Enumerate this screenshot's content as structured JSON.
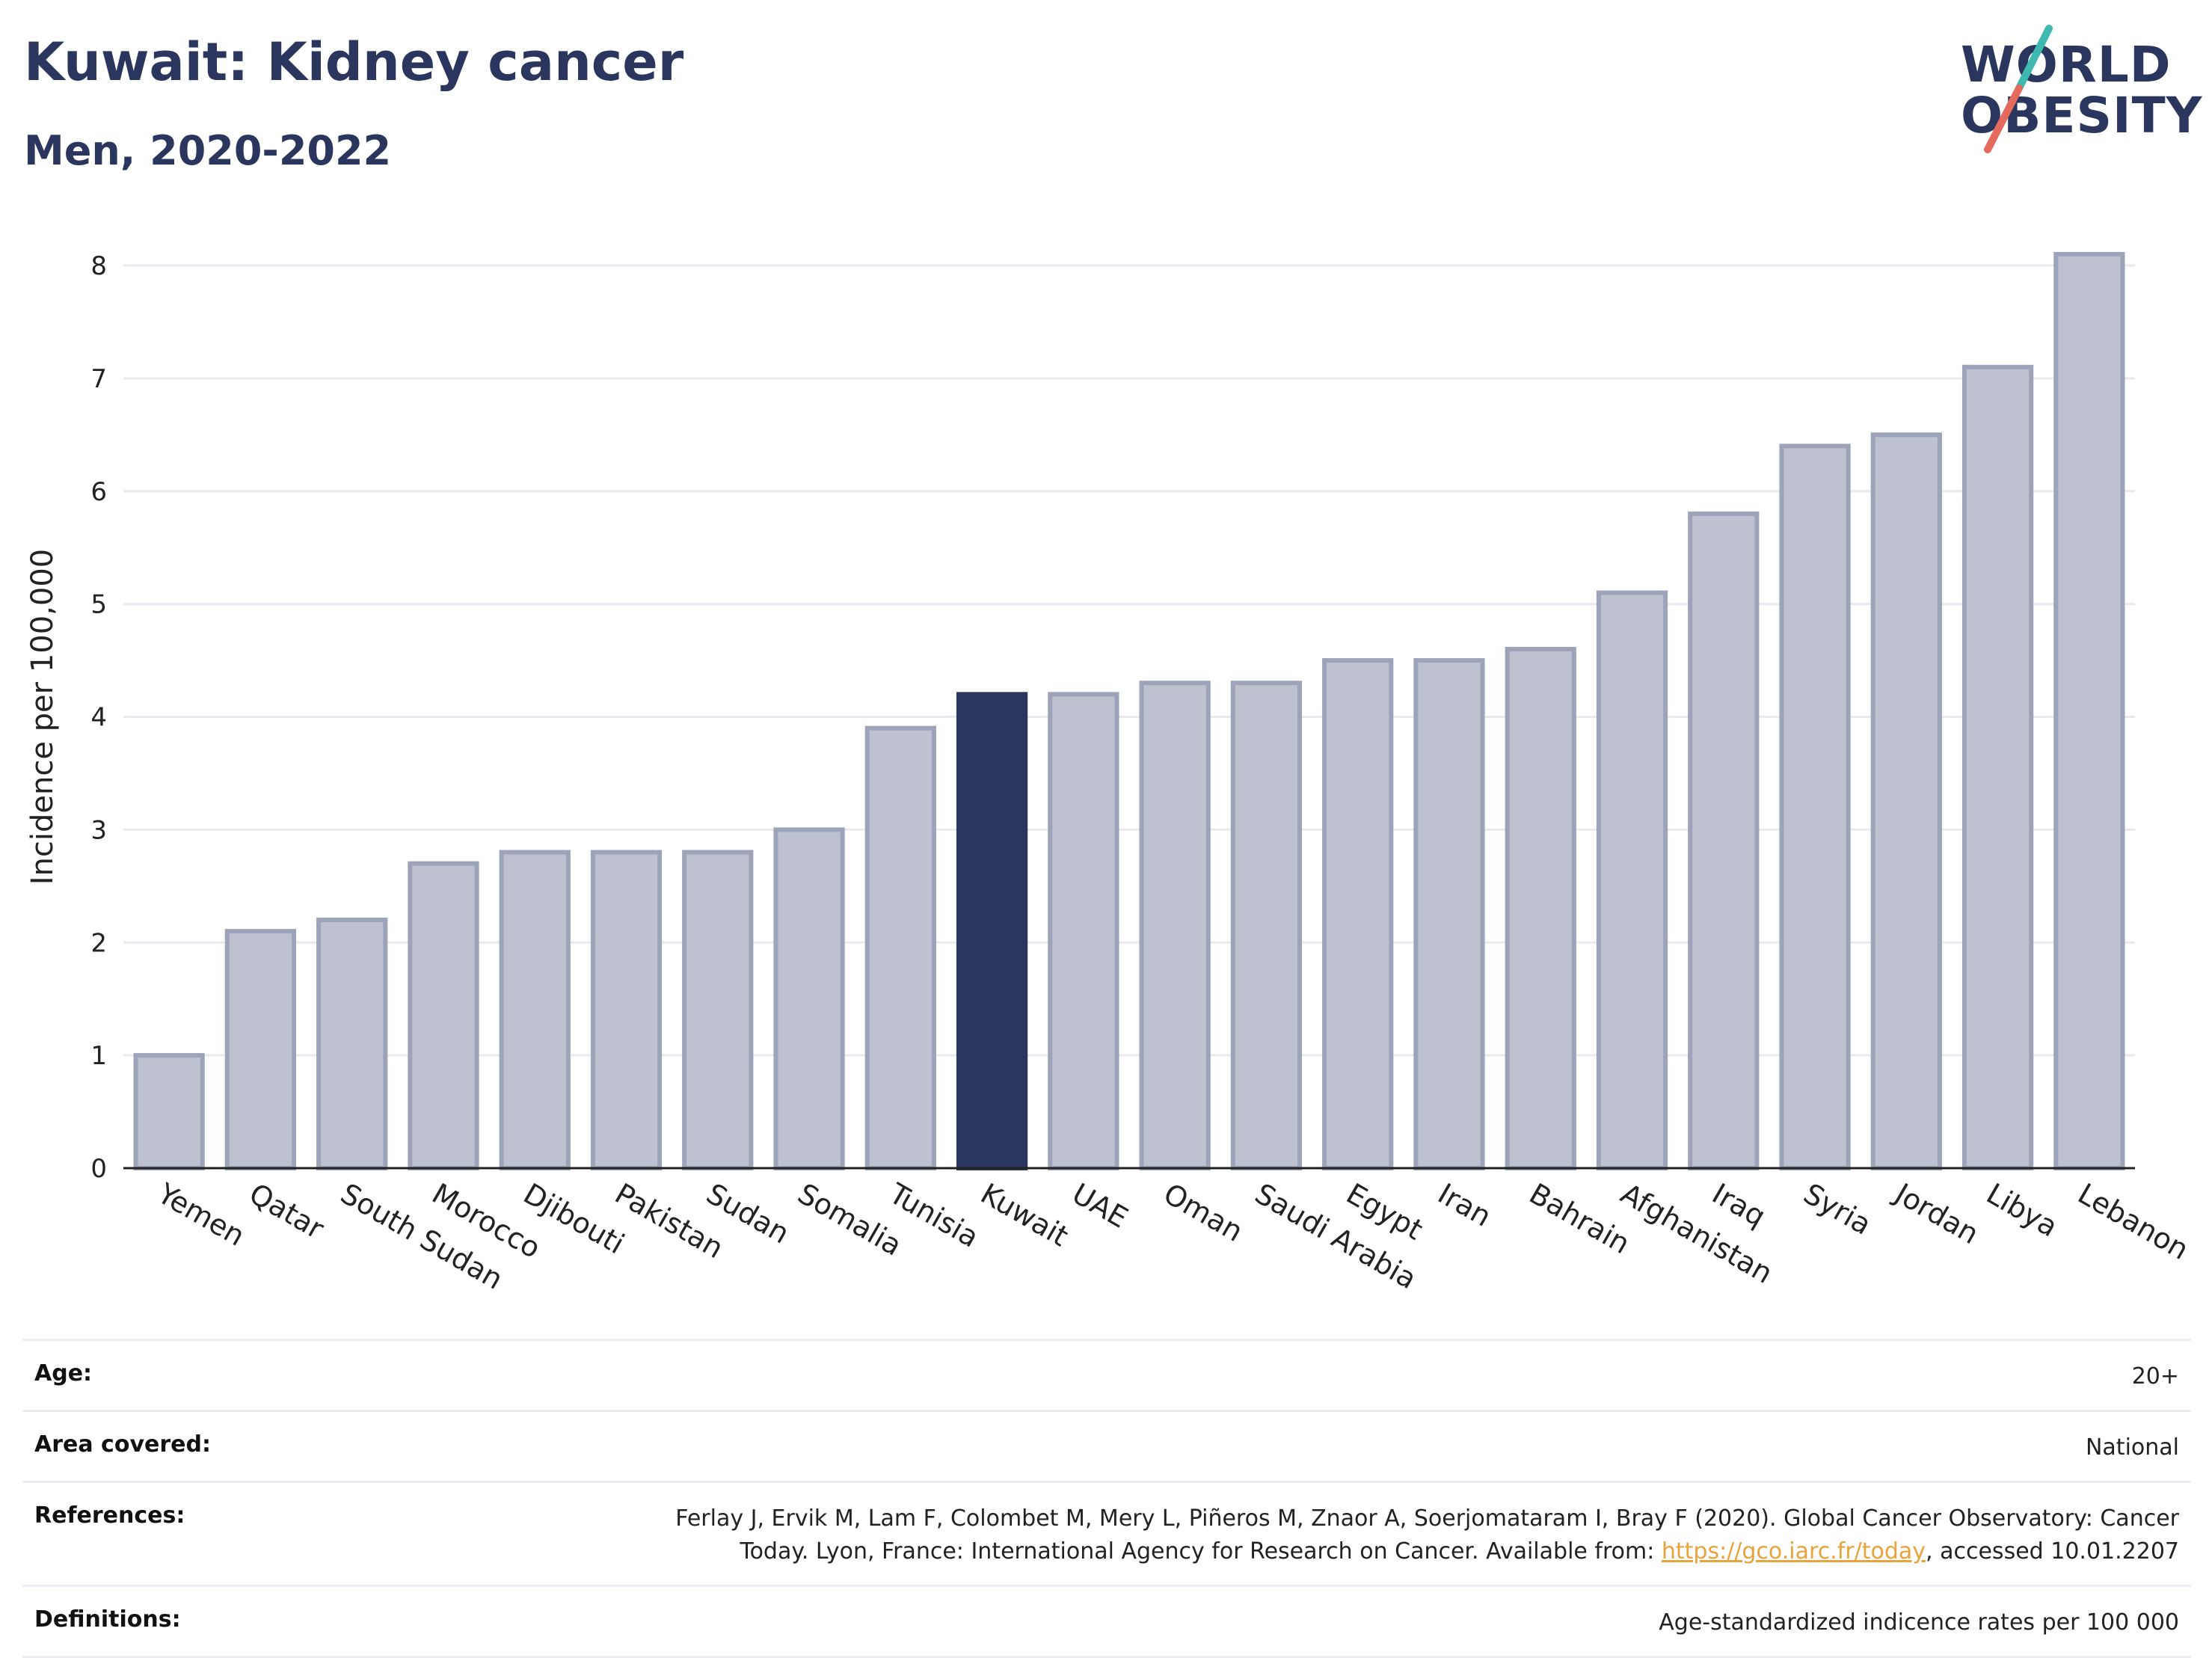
{
  "title": "Kuwait: Kidney cancer",
  "subtitle": "Men, 2020-2022",
  "logo": {
    "line1": "WORLD",
    "line2": "OBESITY"
  },
  "colors": {
    "highlight": "#2a365e",
    "bar": "#bec2d0",
    "bar_stroke": "#9da3b9",
    "axis": "#222222",
    "grid": "#e9e9ef",
    "logo_teal": "#3fb9b0",
    "logo_red": "#e36a5c"
  },
  "chart_data": {
    "type": "bar",
    "categories": [
      "Yemen",
      "Qatar",
      "South Sudan",
      "Morocco",
      "Djibouti",
      "Pakistan",
      "Sudan",
      "Somalia",
      "Tunisia",
      "Kuwait",
      "UAE",
      "Oman",
      "Saudi Arabia",
      "Egypt",
      "Iran",
      "Bahrain",
      "Afghanistan",
      "Iraq",
      "Syria",
      "Jordan",
      "Libya",
      "Lebanon"
    ],
    "values": [
      1.0,
      2.1,
      2.2,
      2.7,
      2.8,
      2.8,
      2.8,
      3.0,
      3.9,
      4.2,
      4.2,
      4.3,
      4.3,
      4.5,
      4.5,
      4.6,
      5.1,
      5.8,
      6.4,
      6.5,
      7.1,
      8.1
    ],
    "highlight": "Kuwait",
    "ylabel": "Incidence per 100,000",
    "ylim": [
      0,
      8
    ],
    "yticks": [
      "0",
      "1",
      "2",
      "3",
      "4",
      "5",
      "6",
      "7",
      "8"
    ],
    "grid": true
  },
  "info": {
    "age_label": "Age:",
    "age_value": "20+",
    "area_label": "Area covered:",
    "area_value": "National",
    "references_label": "References:",
    "references_text": "Ferlay J, Ervik M, Lam F, Colombet M, Mery L, Piñeros M, Znaor A, Soerjomataram I, Bray F (2020). Global Cancer Observatory: Cancer Today. Lyon, France: International Agency for Research on Cancer. Available from: ",
    "references_link": "https://gco.iarc.fr/today",
    "references_suffix": ", accessed 10.01.2207",
    "definitions_label": "Definitions:",
    "definitions_value": "Age-standardized indicence rates per 100 000"
  }
}
